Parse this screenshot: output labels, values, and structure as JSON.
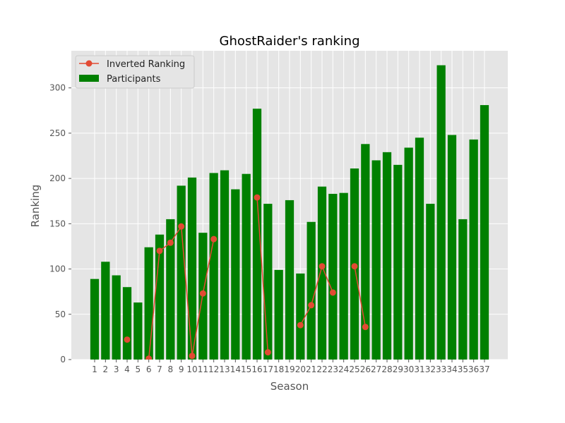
{
  "chart_data": {
    "type": "bar",
    "title": "GhostRaider's ranking",
    "xlabel": "Season",
    "ylabel": "Ranking",
    "x": [
      1,
      2,
      3,
      4,
      5,
      6,
      7,
      8,
      9,
      10,
      11,
      12,
      13,
      14,
      15,
      16,
      17,
      18,
      19,
      20,
      21,
      22,
      23,
      24,
      25,
      26,
      27,
      28,
      29,
      30,
      31,
      32,
      33,
      34,
      35,
      36,
      37
    ],
    "series": [
      {
        "name": "Participants",
        "type": "bar",
        "color": "#008000",
        "values": [
          89,
          108,
          93,
          80,
          63,
          124,
          138,
          155,
          192,
          201,
          140,
          206,
          209,
          188,
          205,
          277,
          172,
          99,
          176,
          95,
          152,
          191,
          183,
          184,
          211,
          238,
          220,
          229,
          215,
          234,
          245,
          172,
          325,
          248,
          155,
          243,
          281
        ]
      },
      {
        "name": "Inverted Ranking",
        "type": "line",
        "color": "#E24A33",
        "values": [
          null,
          null,
          null,
          22,
          null,
          1,
          120,
          129,
          147,
          4,
          73,
          133,
          null,
          null,
          null,
          179,
          8,
          null,
          null,
          38,
          60,
          103,
          74,
          null,
          103,
          36,
          null,
          null,
          null,
          null,
          null,
          null,
          null,
          null,
          null,
          null,
          null
        ]
      }
    ],
    "yticks": [
      0,
      50,
      100,
      150,
      200,
      250,
      300
    ],
    "ylim": [
      0,
      341
    ],
    "grid": true,
    "legend": "top-left",
    "background": "#E5E5E5",
    "grid_color": "#FFFFFF"
  }
}
